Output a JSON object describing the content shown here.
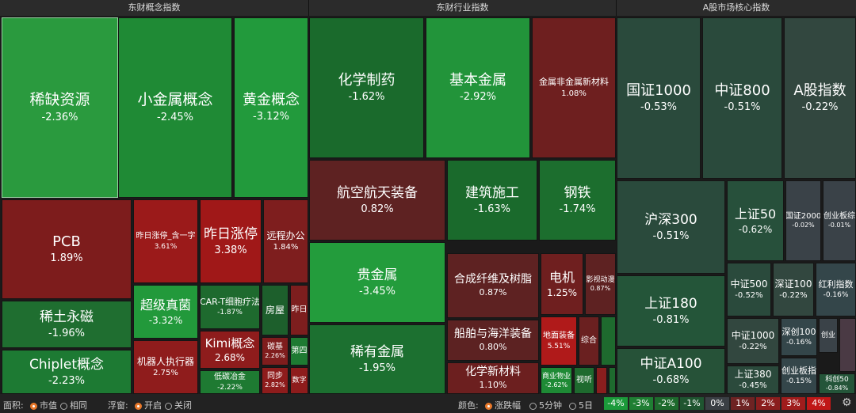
{
  "panels": [
    {
      "title": "东财概念指数",
      "tiles": [
        {
          "label": "稀缺资源",
          "change": "-2.36%"
        },
        {
          "label": "小金属概念",
          "change": "-2.45%"
        },
        {
          "label": "黄金概念",
          "change": "-3.12%"
        },
        {
          "label": "PCB",
          "change": "1.89%"
        },
        {
          "label": "昨日涨停_含一字",
          "change": "3.61%"
        },
        {
          "label": "昨日涨停",
          "change": "3.38%"
        },
        {
          "label": "远程办公",
          "change": "1.84%"
        },
        {
          "label": "稀土永磁",
          "change": "-1.96%"
        },
        {
          "label": "Chiplet概念",
          "change": "-2.23%"
        },
        {
          "label": "超级真菌",
          "change": "-3.32%"
        },
        {
          "label": "CAR-T细胞疗法",
          "change": "-1.87%"
        },
        {
          "label": "房屋"
        },
        {
          "label": "昨日"
        },
        {
          "label": "机器人执行器",
          "change": "2.75%"
        },
        {
          "label": "Kimi概念",
          "change": "2.68%"
        },
        {
          "label": "碳基",
          "change": "2.26%"
        },
        {
          "label": "第四"
        },
        {
          "label": "低碳冶金",
          "change": "-2.22%"
        },
        {
          "label": "同步",
          "change": "2.82%"
        },
        {
          "label": "数字"
        }
      ]
    },
    {
      "title": "东财行业指数",
      "tiles": [
        {
          "label": "化学制药",
          "change": "-1.62%"
        },
        {
          "label": "基本金属",
          "change": "-2.92%"
        },
        {
          "label": "金属非金属新材料",
          "change": "1.08%"
        },
        {
          "label": "航空航天装备",
          "change": "0.82%"
        },
        {
          "label": "建筑施工",
          "change": "-1.63%"
        },
        {
          "label": "钢铁",
          "change": "-1.74%"
        },
        {
          "label": "贵金属",
          "change": "-3.45%"
        },
        {
          "label": "合成纤维及树脂",
          "change": "0.87%"
        },
        {
          "label": "电机",
          "change": "1.25%"
        },
        {
          "label": "影视动漫",
          "change": "0.87%"
        },
        {
          "label": "稀有金属",
          "change": "-1.95%"
        },
        {
          "label": "船舶与海洋装备",
          "change": "0.80%"
        },
        {
          "label": "地面装备",
          "change": "5.51%"
        },
        {
          "label": "综合"
        },
        {
          "label": "化学新材料",
          "change": "1.10%"
        },
        {
          "label": "商业物业",
          "change": "-2.62%"
        },
        {
          "label": "视听"
        }
      ]
    },
    {
      "title": "A股市场核心指数",
      "tiles": [
        {
          "label": "国证1000",
          "change": "-0.53%"
        },
        {
          "label": "中证800",
          "change": "-0.51%"
        },
        {
          "label": "A股指数",
          "change": "-0.22%"
        },
        {
          "label": "沪深300",
          "change": "-0.51%"
        },
        {
          "label": "上证50",
          "change": "-0.62%"
        },
        {
          "label": "国证2000",
          "change": "-0.02%"
        },
        {
          "label": "创业板综",
          "change": "-0.01%"
        },
        {
          "label": "上证180",
          "change": "-0.81%"
        },
        {
          "label": "中证500",
          "change": "-0.52%"
        },
        {
          "label": "深证100",
          "change": "-0.22%"
        },
        {
          "label": "红利指数",
          "change": "-0.16%"
        },
        {
          "label": "中证A100",
          "change": "-0.68%"
        },
        {
          "label": "中证1000",
          "change": "-0.22%"
        },
        {
          "label": "深创100",
          "change": "-0.16%"
        },
        {
          "label": "创业"
        },
        {
          "label": "上证380",
          "change": "-0.45%"
        },
        {
          "label": "创业板指",
          "change": "-0.15%"
        },
        {
          "label": "科创50",
          "change": "-0.84%"
        }
      ]
    }
  ],
  "toolbar": {
    "area_label": "面积:",
    "area_options": [
      "市值",
      "相同"
    ],
    "popup_label": "浮窗:",
    "popup_options": [
      "开启",
      "关闭"
    ],
    "color_label": "颜色:",
    "color_options": [
      "涨跌幅",
      "5分钟",
      "5日"
    ]
  },
  "legend": [
    "-4%",
    "-3%",
    "-2%",
    "-1%",
    "0%",
    "1%",
    "2%",
    "3%",
    "4%"
  ]
}
